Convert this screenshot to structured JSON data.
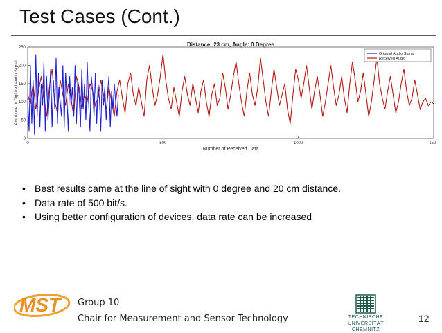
{
  "slide": {
    "title": "Test Cases (Cont.)",
    "bullets": [
      "Best results came at the line of sight with 0 degree and 20 cm distance.",
      "Data rate of 500 bit/s.",
      "Using better configuration of devices, data rate can be increased"
    ],
    "footer_group": "Group 10",
    "footer_chair": "Chair for Measurement and Sensor Technology",
    "page_number": "12",
    "logo_text": "MST",
    "tuc_line1": "TECHNISCHE UNIVERSITÄT",
    "tuc_line2": "CHEMNITZ"
  },
  "colors": {
    "original": "#1f1fd0",
    "received": "#b01818",
    "logo_orange": "#f0a030",
    "tuc_green": "#1f5a4a"
  },
  "chart_data": {
    "type": "line",
    "title": "Distance: 23 cm, Angle: 0 Degree",
    "xlabel": "Number of Received Data",
    "ylabel": "Amplitude of Digitized Audio Signal",
    "xlim": [
      0,
      1500
    ],
    "ylim": [
      0,
      250
    ],
    "x_ticks": [
      "0",
      "500",
      "1000",
      "1500"
    ],
    "y_ticks": [
      "0",
      "50",
      "100",
      "150",
      "200",
      "250"
    ],
    "legend_position": "top-right",
    "series": [
      {
        "name": "Original Audio Signal",
        "x": [
          0,
          5,
          10,
          15,
          20,
          25,
          30,
          35,
          40,
          45,
          50,
          55,
          60,
          65,
          70,
          75,
          80,
          85,
          90,
          95,
          100,
          105,
          110,
          115,
          120,
          125,
          130,
          135,
          140,
          145,
          150,
          155,
          160,
          165,
          170,
          175,
          180,
          185,
          190,
          195,
          200,
          205,
          210,
          215,
          220,
          225,
          230,
          235,
          240,
          245,
          250,
          255,
          260,
          265,
          270,
          275,
          280,
          285,
          290,
          295,
          300,
          305,
          310,
          315,
          320,
          325,
          330,
          335
        ],
        "values": [
          110,
          20,
          200,
          40,
          160,
          10,
          230,
          60,
          180,
          30,
          150,
          90,
          210,
          20,
          170,
          50,
          120,
          190,
          30,
          160,
          80,
          220,
          40,
          140,
          100,
          60,
          200,
          30,
          180,
          110,
          20,
          170,
          90,
          140,
          60,
          200,
          40,
          160,
          120,
          30,
          190,
          80,
          150,
          50,
          210,
          100,
          20,
          170,
          130,
          60,
          180,
          40,
          150,
          110,
          20,
          160,
          90,
          140,
          50,
          120,
          170,
          30,
          130,
          80,
          150,
          100,
          60,
          120
        ]
      },
      {
        "name": "Received Audio",
        "x": [
          0,
          10,
          20,
          30,
          40,
          50,
          60,
          70,
          80,
          90,
          100,
          110,
          120,
          130,
          140,
          150,
          160,
          170,
          180,
          190,
          200,
          210,
          220,
          230,
          240,
          250,
          260,
          270,
          280,
          290,
          300,
          310,
          320,
          330,
          340,
          350,
          360,
          370,
          380,
          390,
          400,
          410,
          420,
          430,
          440,
          450,
          460,
          470,
          480,
          490,
          500,
          510,
          520,
          530,
          540,
          550,
          560,
          570,
          580,
          590,
          600,
          610,
          620,
          630,
          640,
          650,
          660,
          670,
          680,
          690,
          700,
          710,
          720,
          730,
          740,
          750,
          760,
          770,
          780,
          790,
          800,
          810,
          820,
          830,
          840,
          850,
          860,
          870,
          880,
          890,
          900,
          910,
          920,
          930,
          940,
          950,
          960,
          970,
          980,
          990,
          1000,
          1010,
          1020,
          1030,
          1040,
          1050,
          1060,
          1070,
          1080,
          1090,
          1100,
          1110,
          1120,
          1130,
          1140,
          1150,
          1160,
          1170,
          1180,
          1190,
          1200,
          1210,
          1220,
          1230,
          1240,
          1250,
          1260,
          1270,
          1280,
          1290,
          1300,
          1310,
          1320,
          1330,
          1340,
          1350,
          1360,
          1370,
          1380,
          1390,
          1400,
          1410,
          1420,
          1430,
          1440,
          1450,
          1460,
          1470,
          1480,
          1490,
          1500
        ],
        "values": [
          120,
          95,
          150,
          80,
          130,
          170,
          110,
          60,
          140,
          190,
          100,
          70,
          160,
          120,
          90,
          150,
          110,
          60,
          170,
          140,
          80,
          120,
          100,
          150,
          130,
          90,
          110,
          160,
          120,
          80,
          140,
          100,
          60,
          130,
          160,
          110,
          70,
          150,
          180,
          120,
          90,
          140,
          100,
          60,
          160,
          200,
          140,
          90,
          120,
          170,
          230,
          160,
          110,
          80,
          140,
          100,
          60,
          130,
          170,
          120,
          90,
          150,
          110,
          70,
          130,
          160,
          100,
          60,
          120,
          150,
          90,
          110,
          180,
          140,
          80,
          120,
          170,
          210,
          150,
          100,
          60,
          130,
          180,
          120,
          90,
          140,
          220,
          160,
          100,
          60,
          130,
          190,
          140,
          90,
          120,
          150,
          80,
          40,
          120,
          190,
          160,
          110,
          150,
          200,
          140,
          80,
          130,
          170,
          120,
          60,
          100,
          150,
          200,
          140,
          90,
          120,
          170,
          110,
          70,
          150,
          210,
          160,
          100,
          130,
          180,
          120,
          60,
          100,
          160,
          220,
          150,
          110,
          80,
          130,
          170,
          120,
          70,
          100,
          150,
          190,
          130,
          90,
          110,
          160,
          120,
          80,
          100,
          110,
          90,
          100,
          95
        ]
      }
    ]
  }
}
